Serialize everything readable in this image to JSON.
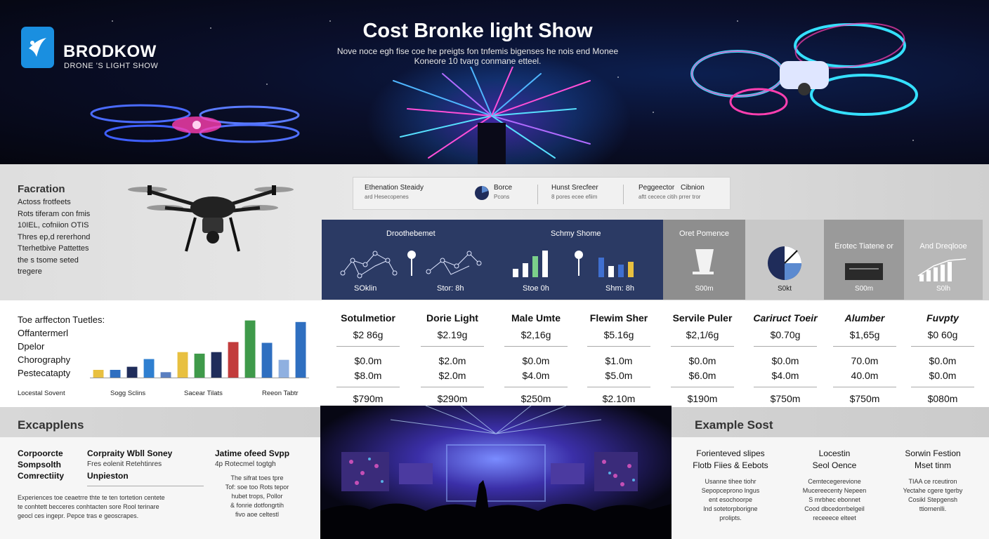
{
  "brand": {
    "name": "BRODKOW",
    "tagline": "DRONE 'S LIGHT SHOW"
  },
  "hero": {
    "title": "Cost Bronke light Show",
    "description_line1": "Nove noce egh fise coe he preigts fon tnfemis bigenses he nois end Monee",
    "description_line2": "Koneore 10 tvarg conmane etteel."
  },
  "features": {
    "title": "Facration",
    "lines": [
      "Actoss frotfeets",
      "Rots tiferam con fmis",
      "10IEL, cofniion OTIS",
      "Thres ep,d rererhond",
      "Tterhetbive Pattettes",
      "the s tsome seted",
      "tregere"
    ]
  },
  "stats": [
    {
      "label": "Ethenation Steaidy",
      "sub": "ard Hesecopenes"
    },
    {
      "label": "Borce",
      "sub": "Pcons"
    },
    {
      "label": "Hunst Srecfeer",
      "sub": "8 pores ecee efiim"
    },
    {
      "label": "Peggeector",
      "label2": "Cibnion",
      "sub": "aftt cecece citih prrer tror"
    }
  ],
  "navy_panel": {
    "label_left": "Droothebemet",
    "label_right": "Schmy Shome",
    "values": [
      "SOklin",
      "Stor: 8h",
      "Stoe 0h",
      "Shm: 8h"
    ]
  },
  "cards": [
    {
      "label": "Oret Pomence",
      "value": "S00m",
      "bg": "#8e8e8e"
    },
    {
      "label": "",
      "value": "S0kt",
      "bg": "#c8c8c8"
    },
    {
      "label": "Erotec Tiatene or",
      "value": "S00m",
      "bg": "#9a9a9a"
    },
    {
      "label": "And Dreqlooe",
      "value": "S0lh",
      "bg": "#b8b8b8"
    }
  ],
  "chart_labels": {
    "left": [
      "Toe arffecton Tuetles:",
      "Offantermerl",
      "Dpelor",
      "Chorography",
      "Pestecatapty"
    ],
    "axis": [
      "Locestal Sovent",
      "Sogg Sclins",
      "Sacear Tilats",
      "Reeon Tabtr"
    ]
  },
  "chart_data": {
    "type": "bar",
    "values": [
      1,
      1,
      1.4,
      2.4,
      0.7,
      3.3,
      3.1,
      3.3,
      4.6,
      7.4,
      4.5,
      2.3,
      7.2
    ],
    "colors": [
      "#e8c040",
      "#2f6fc0",
      "#1f2c5a",
      "#2f7fd0",
      "#5a7fc0",
      "#e8c040",
      "#3f9a4a",
      "#1f2c5a",
      "#c23c3c",
      "#3f9a4a",
      "#2f6fc0",
      "#8fb0e0",
      "#2f6fc0"
    ],
    "ylim": [
      0,
      8
    ]
  },
  "pricing": [
    {
      "name": "Sotulmetior",
      "p1": "$2 86g",
      "p2": "$0.0m",
      "p3": "$8.0m",
      "p4": "$790m"
    },
    {
      "name": "Dorie Light",
      "p1": "$2.19g",
      "p2": "$2.0m",
      "p3": "$2.0m",
      "p4": "$290m"
    },
    {
      "name": "Male Umte",
      "p1": "$2,16g",
      "p2": "$0.0m",
      "p3": "$4.0m",
      "p4": "$250m"
    },
    {
      "name": "Flewim Sher",
      "p1": "$5.16g",
      "p2": "$1.0m",
      "p3": "$5.0m",
      "p4": "$2.10m"
    },
    {
      "name": "Servile Puler",
      "p1": "$2,1/6g",
      "p2": "$0.0m",
      "p3": "$6.0m",
      "p4": "$190m"
    },
    {
      "name": "Cariruct Toeir",
      "p1": "$0.70g",
      "p2": "$0.0m",
      "p3": "$4.0m",
      "p4": "$750m"
    },
    {
      "name": "Alumber",
      "p1": "$1,65g",
      "p2": "70.0m",
      "p3": "40.0m",
      "p4": "$750m"
    },
    {
      "name": "Fuvpty",
      "p1": "$0 60g",
      "p2": "$0.0m",
      "p3": "$0.0m",
      "p4": "$080m"
    }
  ],
  "examples_left": {
    "title": "Excapplens",
    "col1": [
      "Corpoorcte",
      "Sompsolth",
      "Comrectiity"
    ],
    "col2_title": "Corpraity Wbll Soney",
    "col2_sub1": "Fres eolenit Retehtinres",
    "col2_sub2": "Unpieston",
    "col3_title": "Jatime ofeed Svpp",
    "col3_sub": "4p Rotecmel togtgh",
    "col3_lines": [
      "The sifrat toes tpre",
      "Tof: soe too Rots tepor",
      "hubet trops, Pollor",
      "& fonrie dotfongrtih",
      "fivo aoe celtestl"
    ],
    "foot_lines": [
      "Experiences toe ceaetrre thte te ten tortetion centete",
      "te conhtett becceres conhtacten sore Rool terinare",
      "geocl ces ingepr. Pepce tras e geoscrapes."
    ]
  },
  "examples_right": {
    "title": "Example Sost",
    "blocks": [
      {
        "t1": "Forienteved slipes",
        "t2": "Flotb Fiies & Eebots",
        "lines": [
          "Usanne tihee tiohr",
          "Sepopceprono lngus",
          "ent esochoorpe",
          "lnd sotetorpborigne",
          "prolipts."
        ]
      },
      {
        "t1": "Locestin",
        "t2": "Seol Oence",
        "lines": [
          "Cemtecegerevione",
          "Mucereecenty Nepeen",
          "S mrbhec ebonnet",
          "Cood dbcedorrbelgeil",
          "receeece elteet"
        ]
      },
      {
        "t1": "Sorwin Festion",
        "t2": "Mset tinm",
        "lines": [
          "TIAA ce rceutiron",
          "Yectahe cgere tgerby",
          "Cosikl Stepgensh",
          "ttiornenlli."
        ]
      }
    ]
  }
}
